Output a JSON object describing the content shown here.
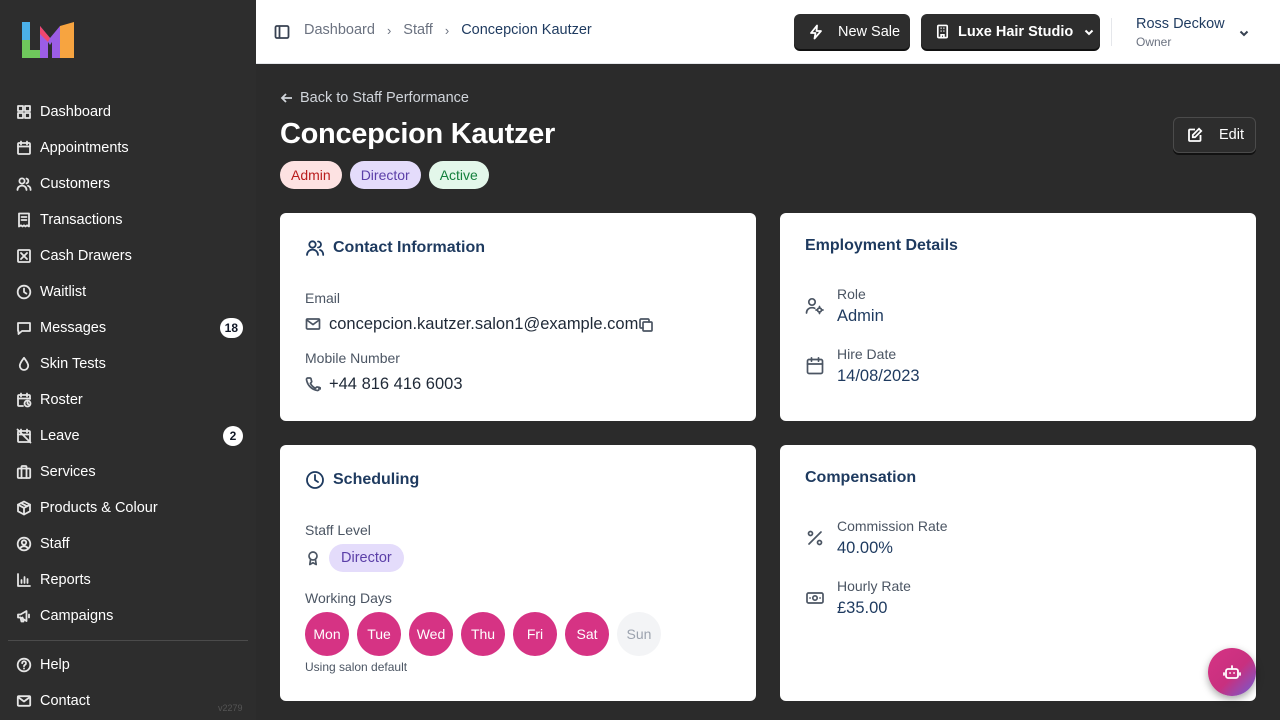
{
  "app": {
    "version": "v2279"
  },
  "sidebar": {
    "items": [
      {
        "label": "Dashboard",
        "icon": "dashboard-icon"
      },
      {
        "label": "Appointments",
        "icon": "calendar-icon"
      },
      {
        "label": "Customers",
        "icon": "users-icon"
      },
      {
        "label": "Transactions",
        "icon": "receipt-icon"
      },
      {
        "label": "Cash Drawers",
        "icon": "cash-drawer-icon"
      },
      {
        "label": "Waitlist",
        "icon": "clock-icon"
      },
      {
        "label": "Messages",
        "icon": "message-icon",
        "badge": "18"
      },
      {
        "label": "Skin Tests",
        "icon": "droplet-icon"
      },
      {
        "label": "Roster",
        "icon": "calendar-clock-icon"
      },
      {
        "label": "Leave",
        "icon": "calendar-off-icon",
        "badge": "2"
      },
      {
        "label": "Services",
        "icon": "briefcase-icon"
      },
      {
        "label": "Products & Colour",
        "icon": "package-icon"
      },
      {
        "label": "Staff",
        "icon": "user-circle-icon"
      },
      {
        "label": "Reports",
        "icon": "bar-chart-icon"
      },
      {
        "label": "Campaigns",
        "icon": "megaphone-icon"
      }
    ],
    "bottom": [
      {
        "label": "Help",
        "icon": "help-icon"
      },
      {
        "label": "Contact",
        "icon": "mail-icon"
      }
    ]
  },
  "header": {
    "breadcrumb": [
      "Dashboard",
      "Staff",
      "Concepcion Kautzer"
    ],
    "new_sale_label": "New Sale",
    "salon_label": "Luxe Hair Studio",
    "user_name": "Ross Deckow",
    "user_role": "Owner"
  },
  "page": {
    "back_label": "Back to Staff Performance",
    "title": "Concepcion Kautzer",
    "edit_label": "Edit",
    "tags": [
      "Admin",
      "Director",
      "Active"
    ]
  },
  "contact": {
    "title": "Contact Information",
    "email_label": "Email",
    "email": "concepcion.kautzer.salon1@example.com",
    "mobile_label": "Mobile Number",
    "mobile": "+44 816 416 6003"
  },
  "employment": {
    "title": "Employment Details",
    "role_label": "Role",
    "role": "Admin",
    "hire_label": "Hire Date",
    "hire_date": "14/08/2023"
  },
  "scheduling": {
    "title": "Scheduling",
    "level_label": "Staff Level",
    "level": "Director",
    "days_label": "Working Days",
    "days": [
      "Mon",
      "Tue",
      "Wed",
      "Thu",
      "Fri",
      "Sat",
      "Sun"
    ],
    "note": "Using salon default"
  },
  "compensation": {
    "title": "Compensation",
    "commission_label": "Commission Rate",
    "commission": "40.00%",
    "hourly_label": "Hourly Rate",
    "hourly": "£35.00"
  },
  "colors": {
    "accent": "#d63384",
    "navy": "#1e3a5f",
    "sidebar_bg": "#2d2d2d"
  }
}
